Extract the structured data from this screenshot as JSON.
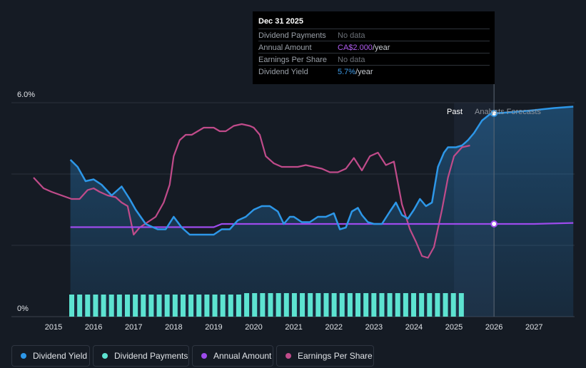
{
  "tooltip": {
    "title": "Dec 31 2025",
    "rows": [
      {
        "label": "Dividend Payments",
        "value": "No data",
        "unit": "",
        "color": "#6c7178"
      },
      {
        "label": "Annual Amount",
        "value": "CA$2.000",
        "unit": "/year",
        "color": "#b05cf0"
      },
      {
        "label": "Earnings Per Share",
        "value": "No data",
        "unit": "",
        "color": "#6c7178"
      },
      {
        "label": "Dividend Yield",
        "value": "5.7%",
        "unit": "/year",
        "color": "#3d9be9"
      }
    ]
  },
  "labels": {
    "past": "Past",
    "forecast": "Analysts Forecasts"
  },
  "legend": [
    {
      "label": "Dividend Yield",
      "color": "#2d97e8"
    },
    {
      "label": "Dividend Payments",
      "color": "#5de3d1"
    },
    {
      "label": "Annual Amount",
      "color": "#9d4bec"
    },
    {
      "label": "Earnings Per Share",
      "color": "#c04b8a"
    }
  ],
  "chart_data": {
    "type": "line",
    "title": "",
    "ylim": [
      0,
      6.0
    ],
    "y_tick_labels": [
      "0%",
      "6.0%"
    ],
    "x_tick_labels": [
      "2015",
      "2016",
      "2017",
      "2018",
      "2019",
      "2020",
      "2021",
      "2022",
      "2023",
      "2024",
      "2025",
      "2026",
      "2027"
    ],
    "xlim": [
      2014.5,
      2027.98
    ],
    "past_end": 2025.0,
    "cursor_x": 2026.0,
    "series": [
      {
        "name": "Dividend Yield",
        "color": "#2d97e8",
        "unit": "%",
        "x": [
          2015.42,
          2015.6,
          2015.8,
          2016.0,
          2016.2,
          2016.45,
          2016.7,
          2016.9,
          2017.05,
          2017.3,
          2017.6,
          2017.8,
          2018.0,
          2018.2,
          2018.4,
          2018.6,
          2018.8,
          2019.0,
          2019.2,
          2019.4,
          2019.6,
          2019.8,
          2020.0,
          2020.2,
          2020.4,
          2020.6,
          2020.75,
          2020.9,
          2021.0,
          2021.2,
          2021.4,
          2021.6,
          2021.8,
          2022.0,
          2022.15,
          2022.3,
          2022.45,
          2022.6,
          2022.7,
          2022.85,
          2023.0,
          2023.2,
          2023.4,
          2023.55,
          2023.7,
          2023.85,
          2024.0,
          2024.15,
          2024.3,
          2024.45,
          2024.6,
          2024.75,
          2024.85,
          2024.95,
          2025.05,
          2025.2,
          2025.35,
          2025.5,
          2025.7,
          2025.9,
          2026.0,
          2026.5,
          2027.0,
          2027.5,
          2027.98
        ],
        "values": [
          4.4,
          4.2,
          3.8,
          3.85,
          3.7,
          3.4,
          3.65,
          3.3,
          3.0,
          2.6,
          2.45,
          2.45,
          2.8,
          2.5,
          2.3,
          2.3,
          2.3,
          2.3,
          2.45,
          2.45,
          2.7,
          2.8,
          3.0,
          3.1,
          3.1,
          2.95,
          2.6,
          2.8,
          2.8,
          2.65,
          2.65,
          2.8,
          2.8,
          2.9,
          2.45,
          2.5,
          2.95,
          3.05,
          2.85,
          2.65,
          2.6,
          2.6,
          2.95,
          3.2,
          2.85,
          2.75,
          3.0,
          3.3,
          3.1,
          3.2,
          4.2,
          4.6,
          4.75,
          4.75,
          4.75,
          4.8,
          4.95,
          5.15,
          5.5,
          5.68,
          5.7,
          5.74,
          5.79,
          5.85,
          5.89
        ]
      },
      {
        "name": "Earnings Per Share",
        "color": "#c04b8a",
        "unit": "%",
        "x": [
          2014.5,
          2014.75,
          2014.95,
          2015.2,
          2015.45,
          2015.65,
          2015.85,
          2016.0,
          2016.15,
          2016.35,
          2016.55,
          2016.7,
          2016.85,
          2017.0,
          2017.15,
          2017.35,
          2017.55,
          2017.75,
          2017.9,
          2018.0,
          2018.15,
          2018.3,
          2018.45,
          2018.6,
          2018.75,
          2018.9,
          2019.0,
          2019.15,
          2019.3,
          2019.5,
          2019.7,
          2019.9,
          2020.0,
          2020.15,
          2020.3,
          2020.5,
          2020.7,
          2020.9,
          2021.1,
          2021.3,
          2021.5,
          2021.7,
          2021.9,
          2022.1,
          2022.3,
          2022.5,
          2022.7,
          2022.9,
          2023.1,
          2023.3,
          2023.5,
          2023.7,
          2023.9,
          2024.05,
          2024.2,
          2024.35,
          2024.5,
          2024.7,
          2024.85,
          2025.0,
          2025.2,
          2025.4
        ],
        "values": [
          3.9,
          3.6,
          3.5,
          3.4,
          3.3,
          3.3,
          3.55,
          3.6,
          3.5,
          3.4,
          3.35,
          3.2,
          3.1,
          2.3,
          2.5,
          2.65,
          2.8,
          3.2,
          3.7,
          4.5,
          4.95,
          5.1,
          5.1,
          5.2,
          5.3,
          5.3,
          5.3,
          5.2,
          5.2,
          5.35,
          5.4,
          5.35,
          5.3,
          5.1,
          4.5,
          4.3,
          4.2,
          4.2,
          4.2,
          4.25,
          4.2,
          4.15,
          4.05,
          4.05,
          4.15,
          4.45,
          4.1,
          4.5,
          4.6,
          4.25,
          4.35,
          3.15,
          2.45,
          2.1,
          1.7,
          1.65,
          1.95,
          3.0,
          3.9,
          4.5,
          4.75,
          4.8
        ]
      },
      {
        "name": "Annual Amount",
        "color": "#9d4bec",
        "unit": "CA$",
        "x": [
          2015.42,
          2019.0,
          2019.2,
          2025.0,
          2026.0,
          2027.0,
          2027.98
        ],
        "values": [
          1.9,
          1.9,
          2.0,
          2.0,
          2.0,
          2.0,
          2.03
        ]
      },
      {
        "name": "Dividend Payments",
        "color": "#5de3d1",
        "unit": "relative",
        "values": [
          0.62,
          0.62,
          0.62,
          0.62,
          0.62,
          0.62,
          0.62,
          0.62,
          0.62,
          0.62,
          0.62,
          0.62,
          0.62,
          0.62,
          0.62,
          0.62,
          0.62,
          0.62,
          0.62,
          0.62,
          0.62,
          0.62,
          0.66,
          0.66,
          0.66,
          0.66,
          0.66,
          0.66,
          0.66,
          0.66,
          0.66,
          0.66,
          0.66,
          0.66,
          0.66,
          0.66,
          0.66,
          0.66,
          0.66,
          0.66,
          0.66,
          0.66,
          0.66,
          0.66,
          0.66,
          0.66,
          0.66,
          0.66,
          0.66,
          0.66
        ]
      }
    ]
  }
}
